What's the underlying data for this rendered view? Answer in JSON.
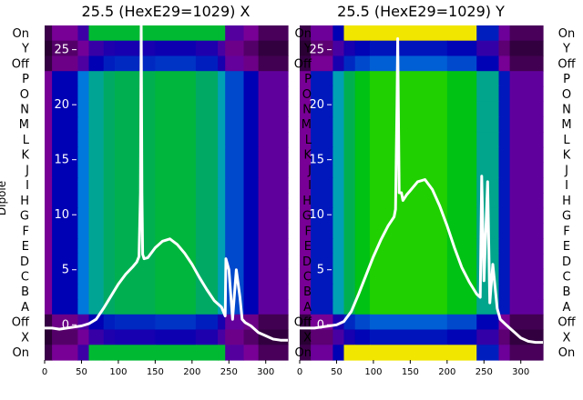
{
  "chart_data": [
    {
      "type": "heatmap",
      "title": "25.5 (HexE29=1029) X",
      "row_labels": [
        "On",
        "Y",
        "Off",
        "P",
        "O",
        "N",
        "M",
        "L",
        "K",
        "J",
        "I",
        "H",
        "G",
        "F",
        "E",
        "D",
        "C",
        "B",
        "A",
        "Off",
        "X",
        "On"
      ],
      "ylabel": "Dipole",
      "x_ticks": [
        0,
        50,
        100,
        150,
        200,
        250,
        300
      ],
      "xlim": [
        0,
        330
      ],
      "overlay_ticks": [
        0,
        5,
        10,
        15,
        20,
        25
      ],
      "overlay_ylim": [
        -3.2,
        27.2
      ],
      "colormap": "nipy_spectral",
      "column_bands": [
        {
          "x": [
            0,
            10
          ],
          "level": 0.1
        },
        {
          "x": [
            10,
            45
          ],
          "level": 0.2
        },
        {
          "x": [
            45,
            60
          ],
          "level": 0.3
        },
        {
          "x": [
            60,
            80
          ],
          "level": 0.44
        },
        {
          "x": [
            80,
            95
          ],
          "level": 0.5
        },
        {
          "x": [
            95,
            150
          ],
          "level": 0.52
        },
        {
          "x": [
            150,
            205
          ],
          "level": 0.54
        },
        {
          "x": [
            205,
            235
          ],
          "level": 0.5
        },
        {
          "x": [
            235,
            245
          ],
          "level": 0.4
        },
        {
          "x": [
            245,
            270
          ],
          "level": 0.26
        },
        {
          "x": [
            270,
            290
          ],
          "level": 0.2
        },
        {
          "x": [
            290,
            330
          ],
          "level": 0.12
        }
      ],
      "edge_rows": {
        "rows": [
          "On",
          "X",
          "On"
        ],
        "level": 0.55
      },
      "sensor_curve": {
        "x": [
          0,
          10,
          20,
          30,
          40,
          50,
          60,
          70,
          80,
          90,
          100,
          110,
          120,
          125,
          128,
          130,
          131,
          132,
          133,
          135,
          140,
          150,
          160,
          170,
          180,
          190,
          200,
          210,
          220,
          230,
          240,
          245,
          246,
          250,
          255,
          260,
          265,
          268,
          272,
          280,
          290,
          300,
          310,
          320,
          330
        ],
        "y": [
          -0.3,
          -0.3,
          -0.4,
          -0.3,
          -0.2,
          -0.1,
          0.1,
          0.5,
          1.5,
          2.6,
          3.7,
          4.6,
          5.3,
          5.7,
          6.2,
          12.0,
          27.5,
          12.0,
          6.4,
          6.0,
          6.1,
          7.0,
          7.6,
          7.8,
          7.3,
          6.5,
          5.5,
          4.3,
          3.2,
          2.2,
          1.6,
          0.8,
          6.0,
          5.0,
          0.5,
          5.0,
          2.5,
          0.5,
          0.2,
          -0.1,
          -0.7,
          -1.0,
          -1.3,
          -1.4,
          -1.4
        ]
      }
    },
    {
      "type": "heatmap",
      "title": "25.5 (HexE29=1029) Y",
      "row_labels": [
        "On",
        "Y",
        "Off",
        "P",
        "O",
        "N",
        "M",
        "L",
        "K",
        "J",
        "I",
        "H",
        "G",
        "F",
        "E",
        "D",
        "C",
        "B",
        "A",
        "Off",
        "X",
        "On"
      ],
      "right_row_labels": [
        "On",
        "Y",
        "Off",
        "P",
        "O",
        "N",
        "M",
        "L",
        "K",
        "J",
        "I",
        "H",
        "G",
        "F",
        "E",
        "D",
        "C",
        "B",
        "A",
        "Off",
        "X",
        "On"
      ],
      "x_ticks": [
        0,
        50,
        100,
        150,
        200,
        250,
        300
      ],
      "xlim": [
        0,
        330
      ],
      "overlay_ticks": [
        0,
        5,
        10,
        15,
        20,
        25
      ],
      "overlay_ylim": [
        -3.2,
        27.2
      ],
      "colormap": "nipy_spectral",
      "column_bands": [
        {
          "x": [
            0,
            15
          ],
          "level": 0.1
        },
        {
          "x": [
            15,
            45
          ],
          "level": 0.22
        },
        {
          "x": [
            45,
            60
          ],
          "level": 0.4
        },
        {
          "x": [
            60,
            75
          ],
          "level": 0.52
        },
        {
          "x": [
            75,
            95
          ],
          "level": 0.58
        },
        {
          "x": [
            95,
            200
          ],
          "level": 0.62
        },
        {
          "x": [
            200,
            240
          ],
          "level": 0.58
        },
        {
          "x": [
            240,
            270
          ],
          "level": 0.45
        },
        {
          "x": [
            270,
            285
          ],
          "level": 0.22
        },
        {
          "x": [
            285,
            330
          ],
          "level": 0.12
        }
      ],
      "edge_rows": {
        "rows": [
          "On",
          "X",
          "On"
        ],
        "level": 0.8
      },
      "sensor_curve": {
        "x": [
          0,
          10,
          20,
          30,
          40,
          50,
          60,
          70,
          80,
          90,
          100,
          110,
          120,
          128,
          130,
          132,
          133,
          135,
          138,
          140,
          145,
          150,
          160,
          170,
          180,
          190,
          200,
          210,
          220,
          230,
          240,
          245,
          247,
          250,
          255,
          258,
          262,
          268,
          272,
          280,
          290,
          300,
          310,
          320,
          330
        ],
        "y": [
          -0.3,
          -0.3,
          -0.3,
          -0.2,
          -0.1,
          0.0,
          0.3,
          1.2,
          2.8,
          4.5,
          6.2,
          7.7,
          9.0,
          9.8,
          10.5,
          20.0,
          26.0,
          12.0,
          12.0,
          11.3,
          11.8,
          12.2,
          13.0,
          13.2,
          12.3,
          10.8,
          9.0,
          7.0,
          5.2,
          3.9,
          2.8,
          2.5,
          13.5,
          4.0,
          13.0,
          2.0,
          5.5,
          1.5,
          0.5,
          0.0,
          -0.6,
          -1.2,
          -1.5,
          -1.6,
          -1.6
        ]
      }
    }
  ]
}
